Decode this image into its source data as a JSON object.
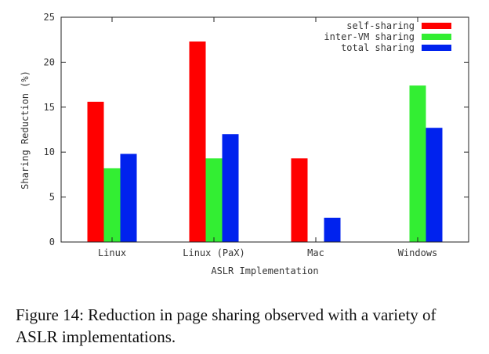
{
  "chart_data": {
    "type": "bar",
    "categories": [
      "Linux",
      "Linux (PaX)",
      "Mac",
      "Windows"
    ],
    "series": [
      {
        "name": "self-sharing",
        "color": "#ff0000",
        "values": [
          15.6,
          22.3,
          9.3,
          null
        ]
      },
      {
        "name": "inter-VM sharing",
        "color": "#33ee33",
        "values": [
          8.2,
          9.3,
          null,
          17.4
        ]
      },
      {
        "name": "total sharing",
        "color": "#0022ee",
        "values": [
          9.8,
          12.0,
          2.7,
          12.7
        ]
      }
    ],
    "xlabel": "ASLR Implementation",
    "ylabel": "Sharing Reduction (%)",
    "ylim": [
      0,
      25
    ],
    "yticks": [
      0,
      5,
      10,
      15,
      20,
      25
    ],
    "grid": false,
    "legend_position": "top-right"
  },
  "caption": "Figure 14: Reduction in page sharing observed with a variety of ASLR implementations."
}
